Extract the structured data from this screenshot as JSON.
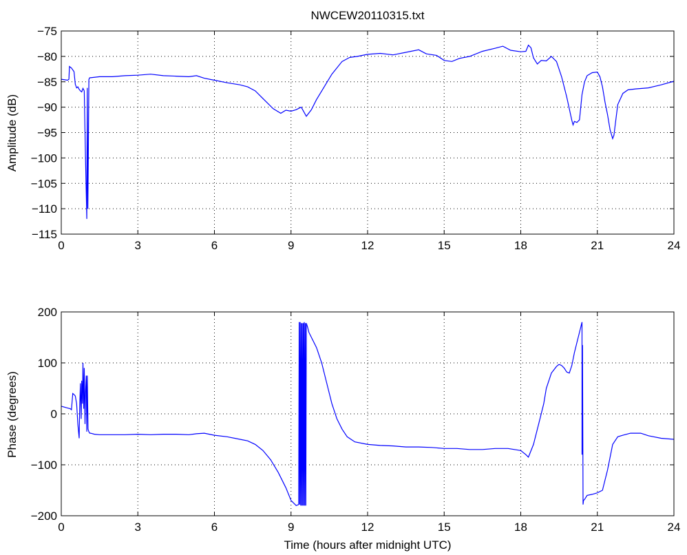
{
  "chart_data": [
    {
      "type": "line",
      "title": "NWCEW20110315.txt",
      "xlabel": "",
      "ylabel": "Amplitude (dB)",
      "xlim": [
        0,
        24
      ],
      "ylim": [
        -115,
        -75
      ],
      "xticks": [
        0,
        3,
        6,
        9,
        12,
        15,
        18,
        21,
        24
      ],
      "xtick_labels": [
        "0",
        "3",
        "6",
        "9",
        "12",
        "15",
        "18",
        "21",
        "24"
      ],
      "yticks": [
        -75,
        -80,
        -85,
        -90,
        -95,
        -100,
        -105,
        -110,
        -115
      ],
      "ytick_labels": [
        "−75",
        "−80",
        "−85",
        "−90",
        "−95",
        "−100",
        "−105",
        "−110",
        "−115"
      ],
      "grid": true,
      "color": "#0000ff",
      "series": [
        {
          "x": [
            0,
            0.25,
            0.3,
            0.32,
            0.4,
            0.5,
            0.55,
            0.6,
            0.65,
            0.7,
            0.75,
            0.8,
            0.85,
            0.9,
            0.95,
            1.0,
            1.02,
            1.04,
            1.06,
            1.08,
            1.1,
            1.12,
            1.15,
            1.5,
            2.0,
            2.5,
            3.0,
            3.5,
            4.0,
            4.5,
            5.0,
            5.3,
            5.6,
            6.0,
            6.5,
            7.0,
            7.3,
            7.6,
            7.8,
            8.0,
            8.3,
            8.6,
            8.8,
            9.0,
            9.2,
            9.4,
            9.6,
            9.8,
            10.0,
            10.3,
            10.6,
            11.0,
            11.3,
            11.6,
            12.0,
            12.5,
            13.0,
            13.5,
            14.0,
            14.3,
            14.7,
            15.0,
            15.3,
            15.6,
            16.0,
            16.5,
            17.0,
            17.3,
            17.6,
            18.0,
            18.2,
            18.3,
            18.4,
            18.5,
            18.65,
            18.8,
            19.0,
            19.2,
            19.4,
            19.5,
            19.6,
            19.8,
            20.0,
            20.05,
            20.1,
            20.2,
            20.3,
            20.4,
            20.5,
            20.6,
            20.8,
            21.0,
            21.1,
            21.2,
            21.3,
            21.4,
            21.5,
            21.6,
            21.65,
            21.7,
            21.8,
            22.0,
            22.2,
            22.5,
            23.0,
            23.5,
            24.0
          ],
          "y": [
            -84.5,
            -84.7,
            -84.5,
            -82.0,
            -82.3,
            -83.0,
            -85.5,
            -86.2,
            -86.0,
            -86.5,
            -86.8,
            -87.0,
            -86.3,
            -86.8,
            -100,
            -112,
            -86.2,
            -110,
            -100,
            -84.6,
            -84.3,
            -84.2,
            -84.2,
            -84.0,
            -84.0,
            -83.8,
            -83.7,
            -83.5,
            -83.8,
            -83.9,
            -84.0,
            -83.8,
            -84.3,
            -84.7,
            -85.2,
            -85.6,
            -86.0,
            -86.8,
            -87.8,
            -88.8,
            -90.3,
            -91.2,
            -90.6,
            -90.8,
            -90.5,
            -90.0,
            -91.8,
            -90.5,
            -88.5,
            -86.0,
            -83.5,
            -81.0,
            -80.2,
            -80.0,
            -79.6,
            -79.4,
            -79.7,
            -79.2,
            -78.7,
            -79.5,
            -79.8,
            -80.8,
            -81.0,
            -80.4,
            -80.0,
            -79.0,
            -78.4,
            -78.0,
            -78.8,
            -79.1,
            -79.0,
            -77.8,
            -78.3,
            -80.3,
            -81.5,
            -80.8,
            -80.9,
            -80.0,
            -81.0,
            -82.5,
            -84.0,
            -88.0,
            -92.6,
            -93.5,
            -92.8,
            -93.0,
            -92.5,
            -87.5,
            -85.0,
            -83.8,
            -83.2,
            -83.1,
            -84.0,
            -86.0,
            -89.0,
            -91.5,
            -94.5,
            -96.2,
            -95.5,
            -93.5,
            -89.5,
            -87.3,
            -86.6,
            -86.4,
            -86.2,
            -85.6,
            -84.9
          ]
        }
      ]
    },
    {
      "type": "line",
      "title": "",
      "xlabel": "Time (hours after midnight UTC)",
      "ylabel": "Phase (degrees)",
      "xlim": [
        0,
        24
      ],
      "ylim": [
        -200,
        200
      ],
      "xticks": [
        0,
        3,
        6,
        9,
        12,
        15,
        18,
        21,
        24
      ],
      "xtick_labels": [
        "0",
        "3",
        "6",
        "9",
        "12",
        "15",
        "18",
        "21",
        "24"
      ],
      "yticks": [
        200,
        100,
        0,
        -100,
        -200
      ],
      "ytick_labels": [
        "200",
        "100",
        "0",
        "−100",
        "−200"
      ],
      "grid": true,
      "color": "#0000ff",
      "series": [
        {
          "x": [
            0,
            0.2,
            0.35,
            0.4,
            0.45,
            0.5,
            0.55,
            0.6,
            0.65,
            0.7,
            0.72,
            0.75,
            0.78,
            0.8,
            0.83,
            0.85,
            0.88,
            0.9,
            0.93,
            0.95,
            0.98,
            1.0,
            1.02,
            1.05,
            1.08,
            1.1,
            1.12,
            1.15,
            1.3,
            1.5,
            2.0,
            2.5,
            3.0,
            3.5,
            4.0,
            4.5,
            5.0,
            5.3,
            5.6,
            6.0,
            6.5,
            7.0,
            7.3,
            7.6,
            7.9,
            8.2,
            8.5,
            8.8,
            9.0,
            9.2,
            9.3,
            9.32,
            9.34,
            9.36,
            9.38,
            9.4,
            9.42,
            9.44,
            9.46,
            9.48,
            9.5,
            9.52,
            9.54,
            9.56,
            9.58,
            9.6,
            9.65,
            9.7,
            9.8,
            10.0,
            10.2,
            10.4,
            10.6,
            10.8,
            11.0,
            11.2,
            11.5,
            12.0,
            12.5,
            13.0,
            13.5,
            14.0,
            14.5,
            15.0,
            15.5,
            16.0,
            16.5,
            17.0,
            17.5,
            18.0,
            18.2,
            18.3,
            18.5,
            18.7,
            18.9,
            19.0,
            19.2,
            19.4,
            19.5,
            19.6,
            19.7,
            19.8,
            19.9,
            20.0,
            20.1,
            20.2,
            20.3,
            20.4,
            20.4,
            20.42,
            20.44,
            20.46,
            20.5,
            20.6,
            20.8,
            21.0,
            21.2,
            21.4,
            21.6,
            21.8,
            22.0,
            22.3,
            22.7,
            23.0,
            23.5,
            24.0
          ],
          "y": [
            15,
            12,
            10,
            8,
            40,
            38,
            35,
            20,
            -20,
            -48,
            10,
            60,
            -10,
            65,
            20,
            100,
            10,
            90,
            -20,
            40,
            75,
            -35,
            75,
            -30,
            -35,
            -37,
            -38,
            -38,
            -40,
            -41,
            -41,
            -41,
            -40,
            -41,
            -40,
            -40,
            -41,
            -39,
            -38,
            -42,
            -45,
            -50,
            -53,
            -60,
            -72,
            -90,
            -115,
            -145,
            -170,
            -180,
            -178,
            180,
            -178,
            180,
            -180,
            178,
            -180,
            178,
            -180,
            178,
            -180,
            180,
            -180,
            178,
            -180,
            178,
            170,
            160,
            150,
            130,
            100,
            60,
            20,
            -10,
            -30,
            -45,
            -55,
            -60,
            -62,
            -63,
            -65,
            -65,
            -66,
            -68,
            -68,
            -70,
            -70,
            -68,
            -68,
            -72,
            -80,
            -85,
            -60,
            -20,
            20,
            50,
            80,
            93,
            97,
            95,
            90,
            82,
            80,
            95,
            120,
            140,
            160,
            180,
            -80,
            135,
            -178,
            -170,
            -168,
            -160,
            -158,
            -155,
            -150,
            -110,
            -60,
            -45,
            -42,
            -38,
            -38,
            -43,
            -48,
            -50
          ]
        }
      ]
    }
  ]
}
